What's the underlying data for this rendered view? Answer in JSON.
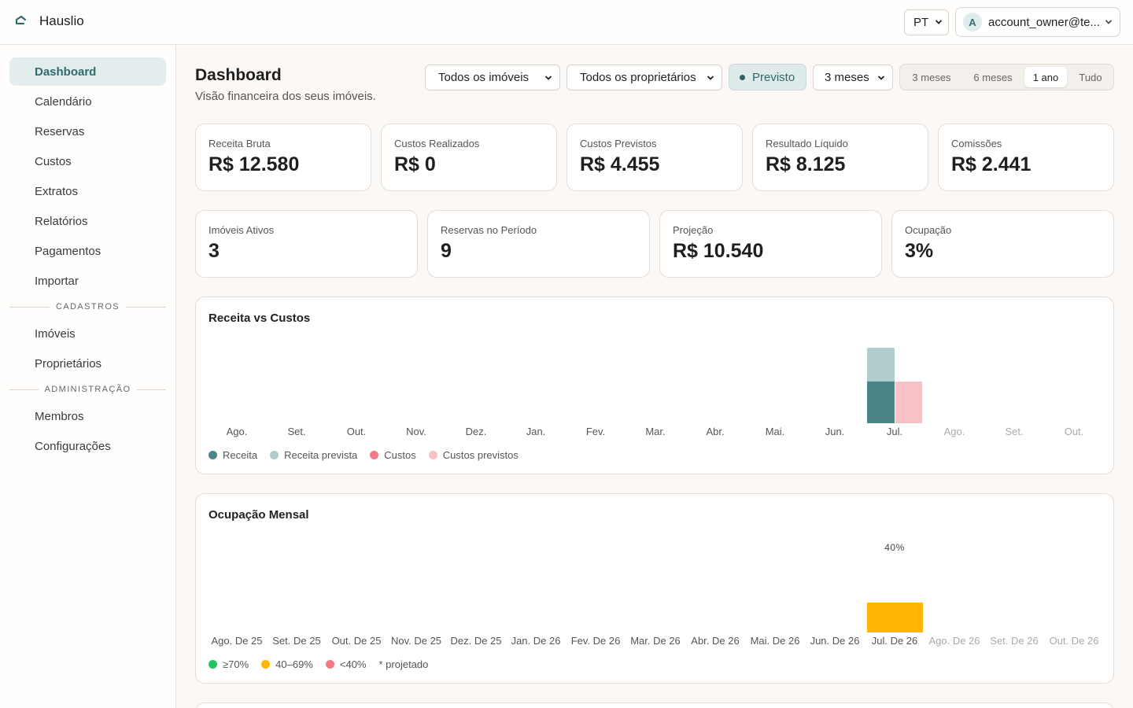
{
  "app": {
    "name": "Hauslio",
    "logo_icon": "house-logo-icon"
  },
  "topbar": {
    "language": "PT",
    "account": {
      "initial": "A",
      "email": "account_owner@te..."
    }
  },
  "sidebar": {
    "items": [
      {
        "label": "Dashboard",
        "active": true
      },
      {
        "label": "Calendário"
      },
      {
        "label": "Reservas"
      },
      {
        "label": "Custos"
      },
      {
        "label": "Extratos"
      },
      {
        "label": "Relatórios"
      },
      {
        "label": "Pagamentos"
      },
      {
        "label": "Importar"
      }
    ],
    "section_cadastros": "CADASTROS",
    "cadastros_items": [
      {
        "label": "Imóveis"
      },
      {
        "label": "Proprietários"
      }
    ],
    "section_admin": "ADMINISTRAÇÃO",
    "admin_items": [
      {
        "label": "Membros"
      },
      {
        "label": "Configurações"
      }
    ]
  },
  "header": {
    "title": "Dashboard",
    "subtitle": "Visão financeira dos seus imóveis."
  },
  "filters": {
    "properties": "Todos os imóveis",
    "owners": "Todos os proprietários",
    "forecast": "Previsto",
    "horizon": "3 meses",
    "periods": [
      "3 meses",
      "6 meses",
      "1 ano",
      "Tudo"
    ],
    "active_period": "1 ano"
  },
  "kpis_row1": [
    {
      "label": "Receita Bruta",
      "value": "R$ 12.580"
    },
    {
      "label": "Custos Realizados",
      "value": "R$ 0"
    },
    {
      "label": "Custos Previstos",
      "value": "R$ 4.455"
    },
    {
      "label": "Resultado Líquido",
      "value": "R$ 8.125"
    },
    {
      "label": "Comissões",
      "value": "R$ 2.441"
    }
  ],
  "kpis_row2": [
    {
      "label": "Imóveis Ativos",
      "value": "3"
    },
    {
      "label": "Reservas no Período",
      "value": "9"
    },
    {
      "label": "Projeção",
      "value": "R$ 10.540"
    },
    {
      "label": "Ocupação",
      "value": "3%"
    }
  ],
  "revenue_chart": {
    "title": "Receita vs Custos",
    "months": [
      "Ago.",
      "Set.",
      "Out.",
      "Nov.",
      "Dez.",
      "Jan.",
      "Fev.",
      "Mar.",
      "Abr.",
      "Mai.",
      "Jun.",
      "Jul.",
      "Ago.",
      "Set.",
      "Out."
    ],
    "future_from_index": 12,
    "legend": [
      "Receita",
      "Receita prevista",
      "Custos",
      "Custos previstos"
    ]
  },
  "occupancy_chart": {
    "title": "Ocupação Mensal",
    "months": [
      "Ago. De 25",
      "Set. De 25",
      "Out. De 25",
      "Nov. De 25",
      "Dez. De 25",
      "Jan. De 26",
      "Fev. De 26",
      "Mar. De 26",
      "Abr. De 26",
      "Mai. De 26",
      "Jun. De 26",
      "Jul. De 26",
      "Ago. De 26",
      "Set. De 26",
      "Out. De 26"
    ],
    "future_from_index": 12,
    "value_label": "40%",
    "legend": [
      "≥70%",
      "40–69%",
      "<40%"
    ],
    "projected_note": "* projetado"
  },
  "chart_data": [
    {
      "type": "bar",
      "title": "Receita vs Custos",
      "categories": [
        "Ago.",
        "Set.",
        "Out.",
        "Nov.",
        "Dez.",
        "Jan.",
        "Fev.",
        "Mar.",
        "Abr.",
        "Mai.",
        "Jun.",
        "Jul.",
        "Ago.",
        "Set.",
        "Out."
      ],
      "series": [
        {
          "name": "Receita",
          "values": [
            0,
            0,
            0,
            0,
            0,
            0,
            0,
            0,
            0,
            0,
            0,
            3400,
            0,
            0,
            0
          ],
          "color": "#4b8587"
        },
        {
          "name": "Receita prevista",
          "values": [
            0,
            0,
            0,
            0,
            0,
            0,
            0,
            0,
            0,
            0,
            0,
            6200,
            0,
            0,
            0
          ],
          "color": "#b1cdce"
        },
        {
          "name": "Custos",
          "values": [
            0,
            0,
            0,
            0,
            0,
            0,
            0,
            0,
            0,
            0,
            0,
            0,
            0,
            0,
            0
          ],
          "color": "#f07a86"
        },
        {
          "name": "Custos previstos",
          "values": [
            0,
            0,
            0,
            0,
            0,
            0,
            0,
            0,
            0,
            0,
            0,
            3400,
            0,
            0,
            0
          ],
          "color": "#f8c1c5"
        }
      ],
      "legend": "bottom-left"
    },
    {
      "type": "bar",
      "title": "Ocupação Mensal",
      "categories": [
        "Ago. De 25",
        "Set. De 25",
        "Out. De 25",
        "Nov. De 25",
        "Dez. De 25",
        "Jan. De 26",
        "Fev. De 26",
        "Mar. De 26",
        "Abr. De 26",
        "Mai. De 26",
        "Jun. De 26",
        "Jul. De 26",
        "Ago. De 26",
        "Set. De 26",
        "Out. De 26"
      ],
      "series": [
        {
          "name": "Ocupação",
          "values": [
            0,
            0,
            0,
            0,
            0,
            0,
            0,
            0,
            0,
            0,
            0,
            40,
            0,
            0,
            0
          ],
          "unit": "%"
        }
      ],
      "colors": {
        "high": "#22c55e",
        "mid": "#ffb703",
        "low": "#f07a86"
      },
      "legend": "bottom-left"
    }
  ]
}
